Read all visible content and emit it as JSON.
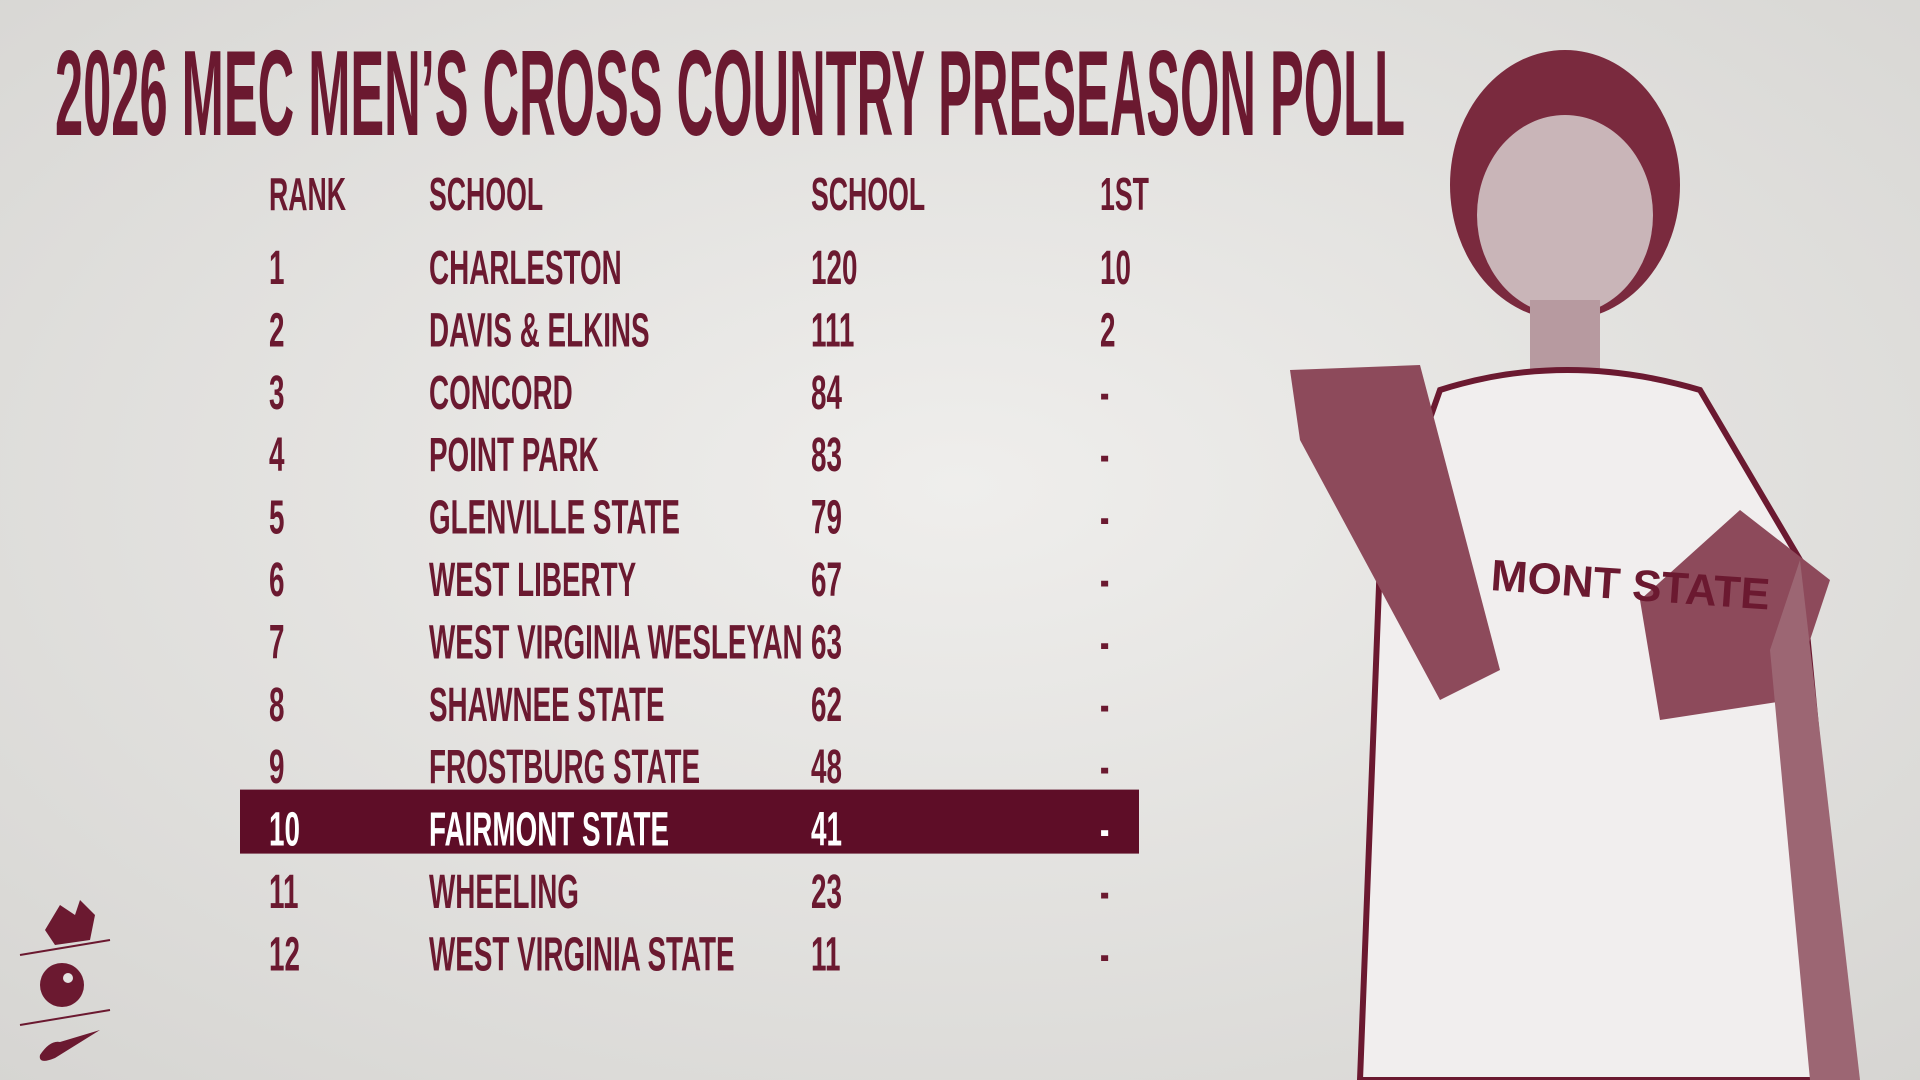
{
  "header": {
    "title": "2026 MEC MEN’S CROSS COUNTRY PRESEASON POLL"
  },
  "table": {
    "columns": [
      "RANK",
      "SCHOOL",
      "SCHOOL",
      "1ST"
    ],
    "rows": [
      [
        1,
        "CHARLESTON",
        120,
        10
      ],
      [
        2,
        "DAVIS & ELKINS",
        111,
        2
      ],
      [
        3,
        "CONCORD",
        84,
        "-"
      ],
      [
        4,
        "POINT PARK",
        83,
        "-"
      ],
      [
        5,
        "GLENVILLE STATE",
        79,
        "-"
      ],
      [
        6,
        "WEST LIBERTY",
        67,
        "-"
      ],
      [
        7,
        "WEST VIRGINIA WESLEYAN",
        63,
        "-"
      ],
      [
        8,
        "SHAWNEE STATE",
        62,
        "-"
      ],
      [
        9,
        "FROSTBURG STATE",
        48,
        "-"
      ],
      [
        10,
        "FAIRMONT STATE",
        41,
        "-"
      ],
      [
        11,
        "WHEELING",
        23,
        "-"
      ],
      [
        12,
        "WEST VIRGINIA STATE",
        11,
        "-"
      ]
    ],
    "highlight_row": 9
  },
  "photo": {
    "jersey_text": "MONT STATE"
  }
}
